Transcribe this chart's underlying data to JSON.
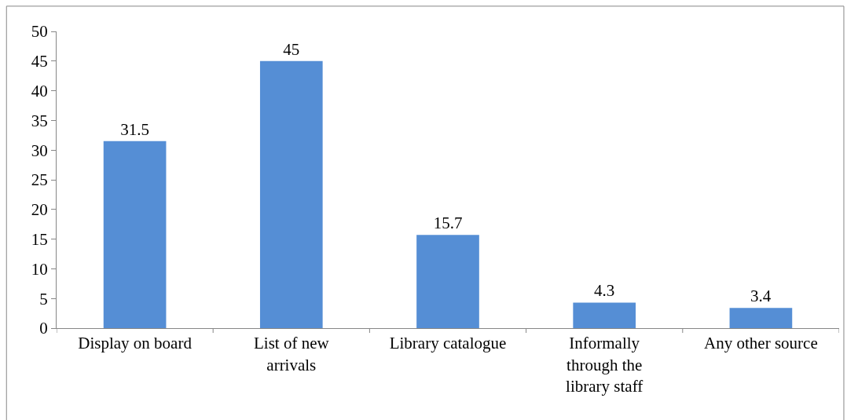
{
  "chart_data": {
    "type": "bar",
    "categories": [
      "Display on board",
      "List of new arrivals",
      "Library catalogue",
      "Informally through the library staff",
      "Any other source"
    ],
    "values": [
      31.5,
      45,
      15.7,
      4.3,
      3.4
    ],
    "color": "#558ed5",
    "ylim": [
      0,
      50
    ],
    "yticks": [
      0,
      5,
      10,
      15,
      20,
      25,
      30,
      35,
      40,
      45,
      50
    ],
    "data_labels": true
  }
}
